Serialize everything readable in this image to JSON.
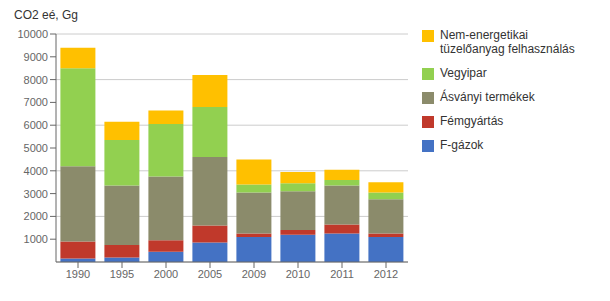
{
  "chart_data": {
    "type": "bar",
    "stacked": true,
    "grid": true,
    "legend": "right",
    "ylabel": "CO2 eé, Gg",
    "categories": [
      "1990",
      "1995",
      "2000",
      "2005",
      "2009",
      "2010",
      "2011",
      "2012"
    ],
    "series": [
      {
        "name": "F-gázok",
        "color": "#4472C4",
        "values": [
          150,
          200,
          450,
          850,
          1100,
          1200,
          1250,
          1100
        ]
      },
      {
        "name": "Fémgyártás",
        "color": "#C0392B",
        "values": [
          750,
          550,
          500,
          750,
          150,
          200,
          400,
          150
        ]
      },
      {
        "name": "Ásványi termékek",
        "color": "#8B8B6B",
        "values": [
          3300,
          2600,
          2800,
          3000,
          1800,
          1700,
          1700,
          1500
        ]
      },
      {
        "name": "Vegyipar",
        "color": "#92D050",
        "values": [
          4300,
          2000,
          2300,
          2200,
          350,
          350,
          250,
          300
        ]
      },
      {
        "name": "Nem-energetikai\ntüzelőanyag felhasználás",
        "color": "#FFC000",
        "values": [
          900,
          800,
          600,
          1400,
          1100,
          500,
          450,
          450
        ]
      }
    ],
    "ylim": [
      0,
      10000
    ],
    "yticks": [
      1000,
      2000,
      3000,
      4000,
      5000,
      6000,
      7000,
      8000,
      9000,
      10000
    ]
  }
}
